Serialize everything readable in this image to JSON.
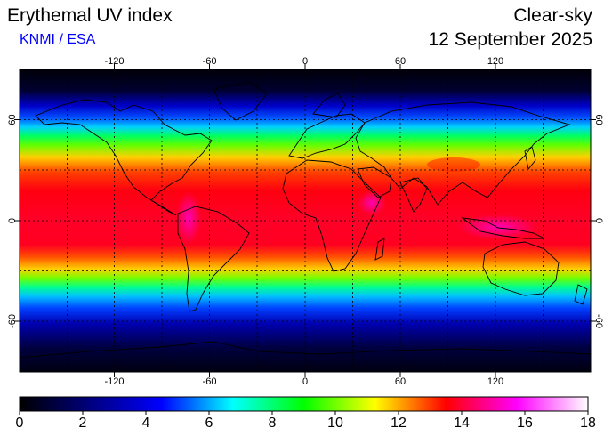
{
  "header": {
    "title": "Erythemal UV index",
    "credit": "KNMI / ESA",
    "mode": "Clear-sky",
    "date": "12 September 2025"
  },
  "map": {
    "projection": "equirectangular",
    "lon_range": [
      -180,
      180
    ],
    "lat_range": [
      -90,
      90
    ],
    "lon_ticks": [
      "-120",
      "-60",
      "0",
      "60",
      "120"
    ],
    "lat_ticks": [
      "60",
      "0",
      "-60"
    ],
    "grid": "dashed every 30 degrees",
    "colors": {
      "night": "#000000",
      "low": "#0000ff",
      "mid": "#00ff00",
      "high": "#ff0000",
      "extreme": "#ff00ff"
    }
  },
  "colorbar": {
    "min": 0,
    "max": 18,
    "labels": [
      "0",
      "2",
      "4",
      "6",
      "8",
      "10",
      "12",
      "14",
      "16",
      "18"
    ],
    "stops": [
      "#000000",
      "#00007f",
      "#0000ff",
      "#00ffff",
      "#00ff00",
      "#ffff00",
      "#ff0000",
      "#ff00ff",
      "#ffffff"
    ]
  }
}
